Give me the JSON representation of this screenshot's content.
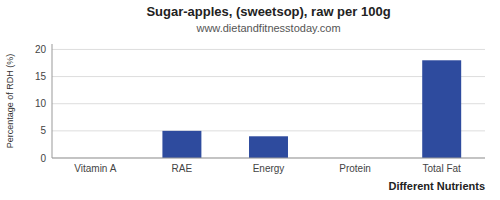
{
  "chart_data": {
    "type": "bar",
    "title": "Sugar-apples, (sweetsop), raw per 100g",
    "subtitle": "www.dietandfitnesstoday.com",
    "xlabel": "Different Nutrients",
    "ylabel": "Percentage of RDH (%)",
    "categories": [
      "Vitamin A",
      "RAE",
      "Energy",
      "Protein",
      "Total Fat"
    ],
    "values": [
      0,
      5,
      4,
      0,
      18
    ],
    "color": "#2e4b9e",
    "ylim": [
      0,
      21
    ],
    "yticks": [
      0,
      5,
      10,
      15,
      20
    ],
    "grid": true
  }
}
